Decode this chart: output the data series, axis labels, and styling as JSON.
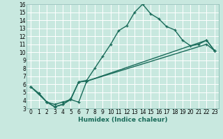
{
  "xlabel": "Humidex (Indice chaleur)",
  "xlim": [
    -0.5,
    23.5
  ],
  "ylim": [
    3,
    16
  ],
  "xticks": [
    0,
    1,
    2,
    3,
    4,
    5,
    6,
    7,
    8,
    9,
    10,
    11,
    12,
    13,
    14,
    15,
    16,
    17,
    18,
    19,
    20,
    21,
    22,
    23
  ],
  "yticks": [
    3,
    4,
    5,
    6,
    7,
    8,
    9,
    10,
    11,
    12,
    13,
    14,
    15,
    16
  ],
  "bg_color": "#c8e8df",
  "grid_color": "#aed4cc",
  "line_color": "#1a6b5a",
  "line1_x": [
    0,
    1,
    2,
    3,
    4,
    5,
    6,
    7,
    8,
    9,
    10,
    11,
    12,
    13,
    14,
    15,
    16,
    17,
    18,
    19,
    20,
    21,
    22,
    23
  ],
  "line1_y": [
    5.7,
    4.9,
    3.8,
    3.2,
    3.5,
    4.2,
    6.3,
    6.5,
    8.0,
    9.5,
    11.0,
    12.7,
    13.3,
    15.0,
    16.0,
    14.8,
    14.2,
    13.2,
    12.8,
    11.5,
    10.8,
    11.0,
    11.5,
    10.2
  ],
  "line2_x": [
    0,
    2,
    3,
    4,
    5,
    6,
    7,
    22,
    23
  ],
  "line2_y": [
    5.7,
    3.8,
    3.5,
    3.8,
    4.1,
    6.3,
    6.4,
    11.5,
    10.2
  ],
  "line3_x": [
    1,
    2,
    3,
    4,
    5,
    6,
    7,
    22,
    23
  ],
  "line3_y": [
    4.9,
    3.8,
    3.2,
    3.5,
    4.1,
    3.8,
    6.4,
    11.0,
    10.2
  ],
  "tick_fontsize": 5.5,
  "xlabel_fontsize": 6.5
}
